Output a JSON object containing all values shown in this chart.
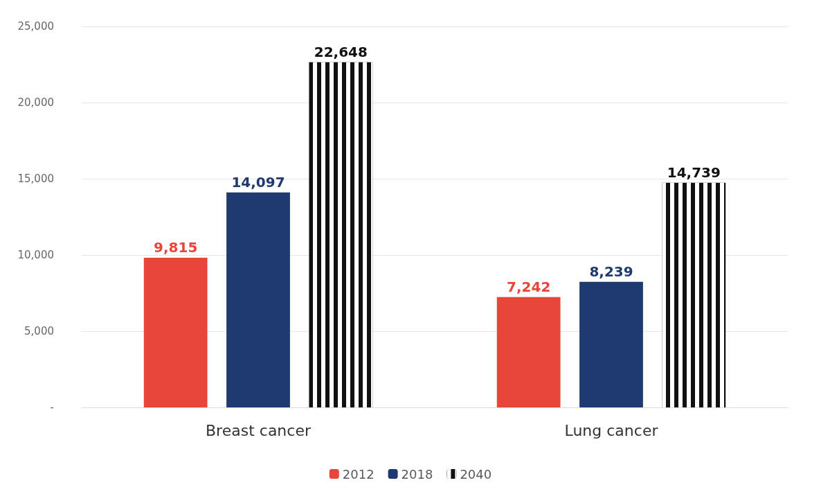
{
  "chart_data": {
    "type": "bar",
    "categories": [
      "Breast cancer",
      "Lung cancer"
    ],
    "series": [
      {
        "name": "2012",
        "color": "#e8463a",
        "values": [
          9815,
          7242
        ],
        "value_labels": [
          "9,815",
          "7,242"
        ]
      },
      {
        "name": "2018",
        "color": "#1f3a6e",
        "values": [
          14097,
          8239
        ],
        "value_labels": [
          "14,097",
          "8,239"
        ]
      },
      {
        "name": "2040",
        "color": "#111111",
        "values": [
          22648,
          14739
        ],
        "value_labels": [
          "22,648",
          "14,739"
        ]
      }
    ],
    "ylim": [
      0,
      25000
    ],
    "yticks": [
      {
        "value": 0,
        "label": "-"
      },
      {
        "value": 5000,
        "label": "5,000"
      },
      {
        "value": 10000,
        "label": "10,000"
      },
      {
        "value": 15000,
        "label": "15,000"
      },
      {
        "value": 20000,
        "label": "20,000"
      },
      {
        "value": 25000,
        "label": "25,000"
      }
    ],
    "grid": "y",
    "legend": "bottom"
  }
}
